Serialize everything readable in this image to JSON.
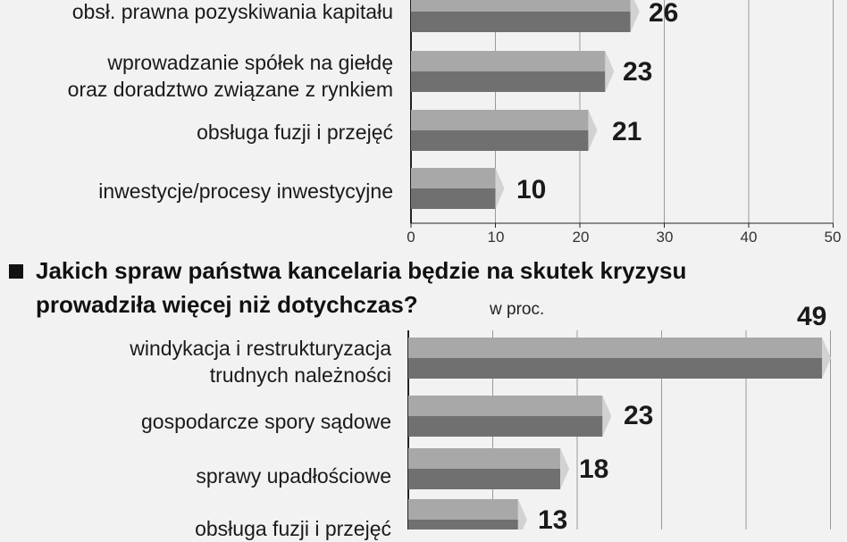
{
  "chart_data": [
    {
      "type": "bar",
      "orientation": "horizontal",
      "categories": [
        "obsł. prawna pozyskiwania kapitału",
        "wprowadzanie spółek na giełdę\noraz doradztwo związane z rynkiem",
        "obsługa fuzji i przejęć",
        "inwestycje/procesy inwestycyjne"
      ],
      "values": [
        26,
        23,
        21,
        10
      ],
      "data_labels": [
        "26",
        "23",
        "21",
        "10"
      ],
      "xlim": [
        0,
        50
      ],
      "xticks": [
        "0",
        "10",
        "20",
        "30",
        "40",
        "50"
      ],
      "grid": true
    },
    {
      "type": "bar",
      "orientation": "horizontal",
      "title": "Jakich spraw państwa kancelaria będzie na skutek kryzysu prowadziła więcej niż dotychczas?",
      "title_lines": [
        "Jakich spraw państwa kancelaria będzie na skutek kryzysu",
        "prowadziła więcej niż dotychczas?"
      ],
      "unit": "w proc.",
      "categories": [
        "windykacja i restrukturyzacja\ntrudnych należności",
        "gospodarcze spory sądowe",
        "sprawy upadłościowe",
        "obsługa fuzji i przejęć"
      ],
      "values": [
        49,
        23,
        18,
        13
      ],
      "data_labels": [
        "49",
        "23",
        "18",
        "13"
      ],
      "xlim": [
        0,
        50
      ],
      "grid": true
    }
  ],
  "colors": {
    "bar_top": "#a8a8a8",
    "bar_bottom": "#707070",
    "bar_cap": "#d2d2d2",
    "grid": "#9a9a9a",
    "axis": "#222222"
  }
}
